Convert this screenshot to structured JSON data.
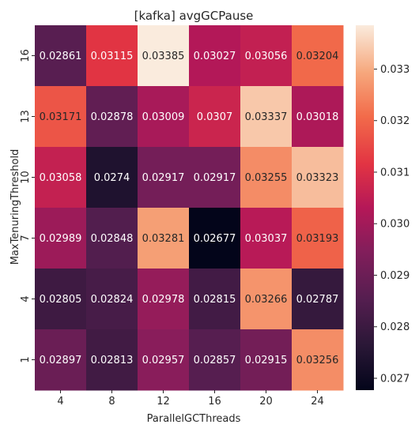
{
  "chart_data": {
    "type": "heatmap",
    "title": "[kafka] avgGCPause",
    "xlabel": "ParallelGCThreads",
    "ylabel": "MaxTenuringThreshold",
    "x": [
      "4",
      "8",
      "12",
      "16",
      "20",
      "24"
    ],
    "y": [
      "16",
      "13",
      "10",
      "7",
      "4",
      "1"
    ],
    "values": [
      [
        0.02861,
        0.03115,
        0.03385,
        0.03027,
        0.03056,
        0.03204
      ],
      [
        0.03171,
        0.02878,
        0.03009,
        0.0307,
        0.03337,
        0.03018
      ],
      [
        0.03058,
        0.0274,
        0.02917,
        0.02917,
        0.03255,
        0.03323
      ],
      [
        0.02989,
        0.02848,
        0.03281,
        0.02677,
        0.03037,
        0.03193
      ],
      [
        0.02805,
        0.02824,
        0.02978,
        0.02815,
        0.03266,
        0.02787
      ],
      [
        0.02897,
        0.02813,
        0.02957,
        0.02857,
        0.02915,
        0.03256
      ]
    ],
    "labels": [
      [
        "0.02861",
        "0.03115",
        "0.03385",
        "0.03027",
        "0.03056",
        "0.03204"
      ],
      [
        "0.03171",
        "0.02878",
        "0.03009",
        "0.0307",
        "0.03337",
        "0.03018"
      ],
      [
        "0.03058",
        "0.0274",
        "0.02917",
        "0.02917",
        "0.03255",
        "0.03323"
      ],
      [
        "0.02989",
        "0.02848",
        "0.03281",
        "0.02677",
        "0.03037",
        "0.03193"
      ],
      [
        "0.02805",
        "0.02824",
        "0.02978",
        "0.02815",
        "0.03266",
        "0.02787"
      ],
      [
        "0.02897",
        "0.02813",
        "0.02957",
        "0.02857",
        "0.02915",
        "0.03256"
      ]
    ],
    "colormap": "rocket",
    "colorbar": {
      "vmin": 0.02677,
      "vmax": 0.03385,
      "ticks": [
        0.027,
        0.028,
        0.029,
        0.03,
        0.031,
        0.032,
        0.033
      ],
      "tick_labels": [
        "0.027",
        "0.028",
        "0.029",
        "0.030",
        "0.031",
        "0.032",
        "0.033"
      ]
    },
    "colors": {
      "text_on_dark": "#ffffff",
      "text_on_light": "#262626",
      "axis": "#262626"
    }
  }
}
